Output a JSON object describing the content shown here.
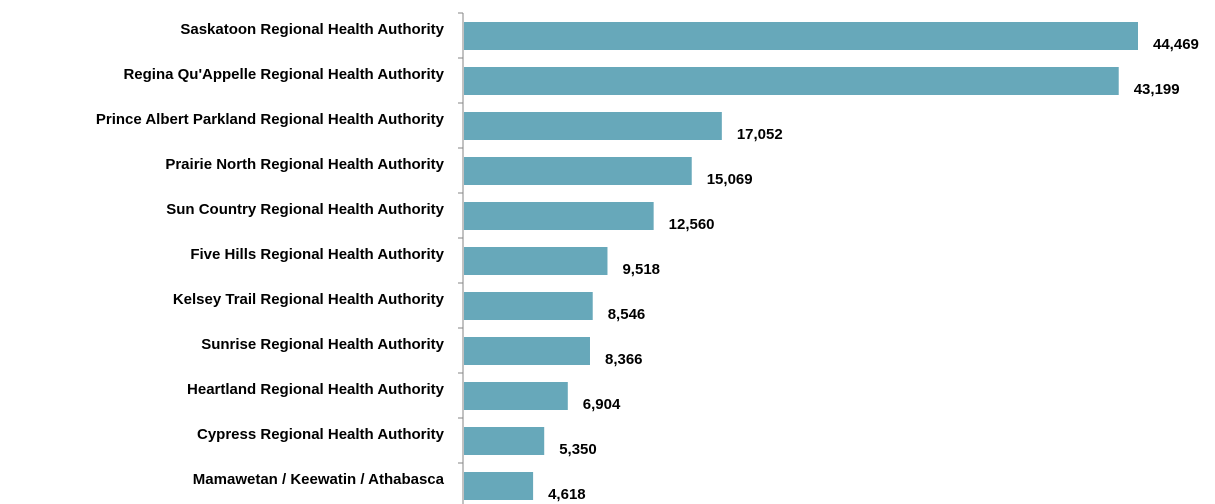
{
  "chart_data": {
    "type": "bar",
    "orientation": "horizontal",
    "title": "",
    "xlabel": "",
    "ylabel": "",
    "categories": [
      "Saskatoon Regional Health Authority",
      "Regina Qu'Appelle Regional Health Authority",
      "Prince Albert Parkland Regional Health Authority",
      "Prairie North Regional Health Authority",
      "Sun Country Regional Health Authority",
      "Five Hills Regional Health Authority",
      "Kelsey Trail Regional Health Authority",
      "Sunrise Regional Health Authority",
      "Heartland Regional Health Authority",
      "Cypress Regional Health Authority",
      "Mamawetan / Keewatin / Athabasca"
    ],
    "values": [
      44469,
      43199,
      17052,
      15069,
      12560,
      9518,
      8546,
      8366,
      6904,
      5350,
      4618
    ],
    "value_labels": [
      "44,469",
      "43,199",
      "17,052",
      "15,069",
      "12,560",
      "9,518",
      "8,546",
      "8,366",
      "6,904",
      "5,350",
      "4,618"
    ],
    "xlim": [
      0,
      44469
    ],
    "grid": false,
    "legend": "none",
    "bar_color": "#67A8BA"
  }
}
